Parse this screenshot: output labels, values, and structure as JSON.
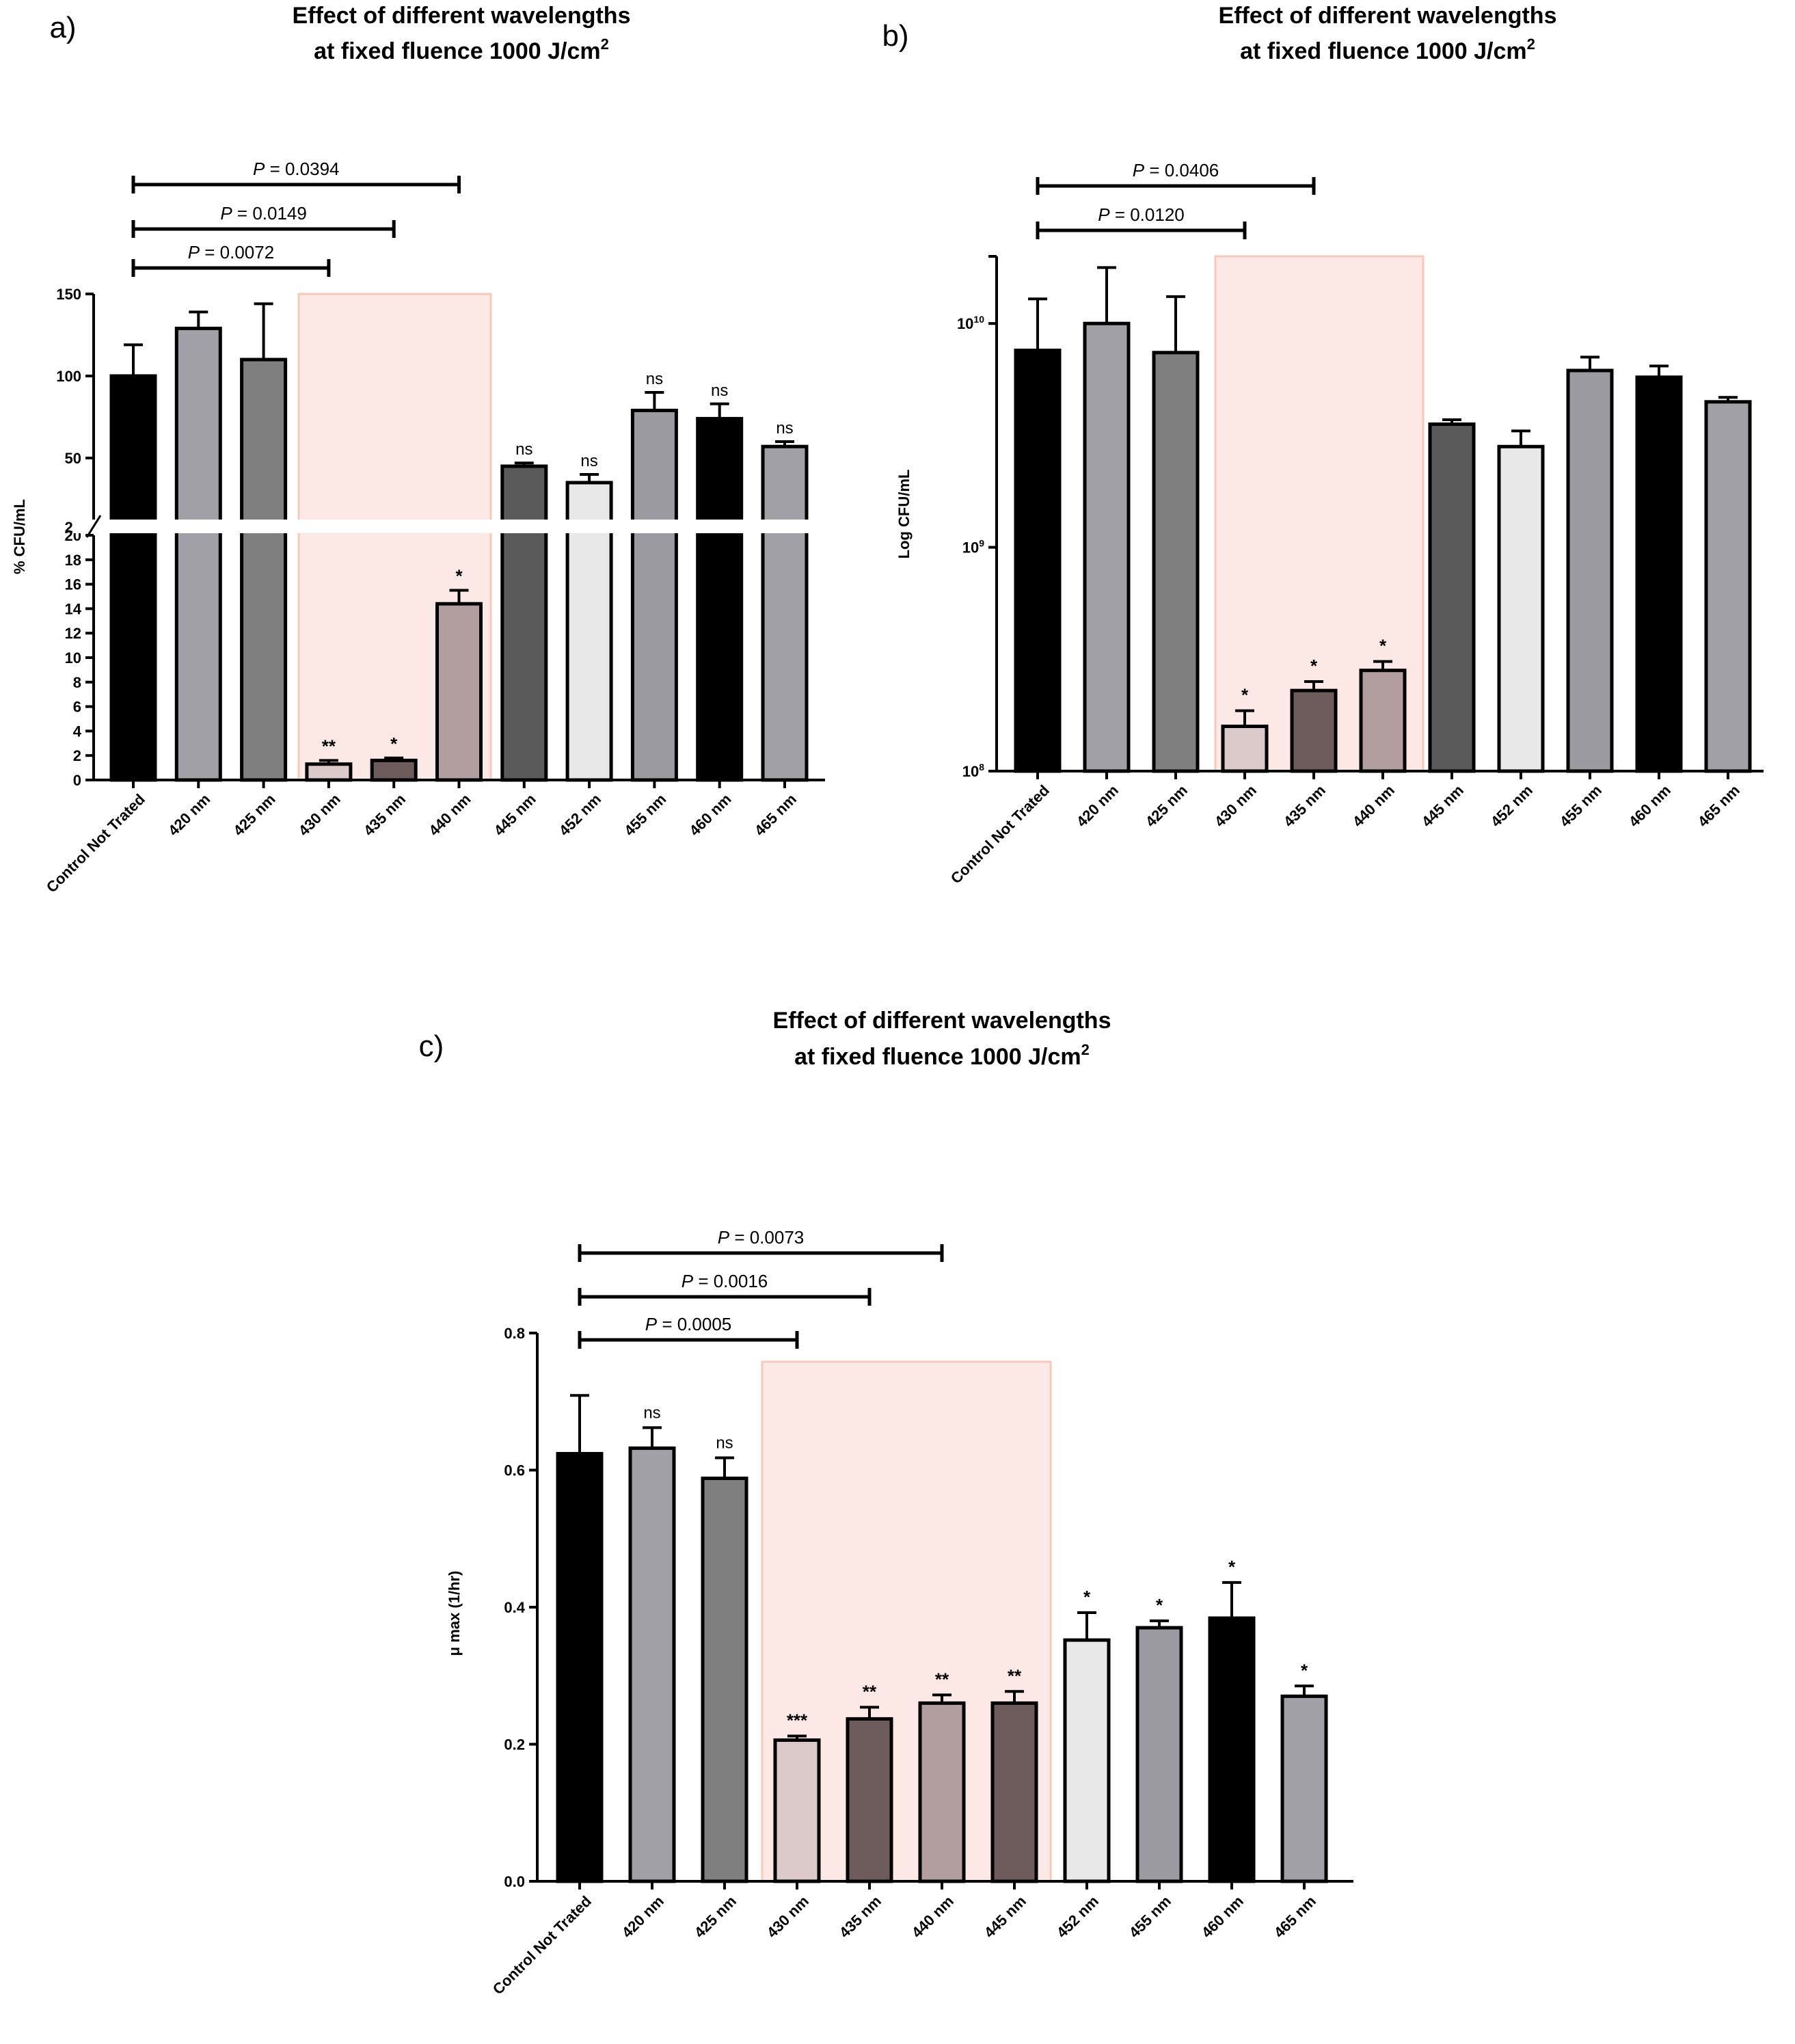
{
  "chart_data": [
    {
      "id": "a",
      "type": "bar",
      "panel_label": "a)",
      "title_line1": "Effect of different wavelengths",
      "title_line2": "at fixed fluence 1000 J/cm",
      "title_sup": "2",
      "ylabel": "% CFU/mL",
      "xlabel": "",
      "axis_break": {
        "lower": [
          0,
          20
        ],
        "upper": [
          20,
          150
        ]
      },
      "y_ticks_lower": [
        "0",
        "2",
        "4",
        "6",
        "8",
        "10",
        "12",
        "14",
        "16",
        "18",
        "20"
      ],
      "y_ticks_upper": [
        "50",
        "100",
        "150"
      ],
      "categories": [
        "Control Not Trated",
        "420 nm",
        "425 nm",
        "430 nm",
        "435 nm",
        "440 nm",
        "445 nm",
        "452 nm",
        "455 nm",
        "460 nm",
        "465 nm"
      ],
      "values": [
        100,
        129,
        110,
        1.3,
        1.6,
        14.4,
        45,
        35,
        79,
        74,
        57
      ],
      "errors": [
        19,
        10,
        34,
        0.3,
        0.2,
        1.1,
        2,
        5,
        11,
        9,
        3
      ],
      "colors": [
        "#000000",
        "#a0a0a6",
        "#7f7f7f",
        "#dccaca",
        "#6e5c5c",
        "#b29e9e",
        "#5a5a5a",
        "#e8e8e8",
        "#9a9aa0",
        "#000000",
        "#a0a0a6"
      ],
      "annotations": [
        "",
        "",
        "",
        "**",
        "*",
        "*",
        "ns",
        "ns",
        "ns",
        "ns",
        "ns"
      ],
      "highlight": {
        "from": 3,
        "to": 5
      },
      "brackets": [
        {
          "from": 0,
          "to": 5,
          "label_p": "P",
          "label": " = 0.0394"
        },
        {
          "from": 0,
          "to": 4,
          "label_p": "P",
          "label": " = 0.0149"
        },
        {
          "from": 0,
          "to": 3,
          "label_p": "P",
          "label": " = 0.0072"
        }
      ]
    },
    {
      "id": "b",
      "type": "bar",
      "panel_label": "b)",
      "title_line1": "Effect of different wavelengths",
      "title_line2": "at fixed fluence 1000 J/cm",
      "title_sup": "2",
      "ylabel": "Log CFU/mL",
      "xlabel": "",
      "yscale": "log",
      "ylim_exp": [
        8,
        10.3
      ],
      "y_ticks": [
        {
          "base": "10",
          "exp": "8"
        },
        {
          "base": "10",
          "exp": "9"
        },
        {
          "base": "10",
          "exp": "10"
        }
      ],
      "categories": [
        "Control Not Trated",
        "420 nm",
        "425 nm",
        "430 nm",
        "435 nm",
        "440 nm",
        "445 nm",
        "452 nm",
        "455 nm",
        "460 nm",
        "465 nm"
      ],
      "values_log10": [
        9.88,
        10.0,
        9.87,
        8.2,
        8.36,
        8.45,
        9.55,
        9.45,
        9.79,
        9.76,
        9.65
      ],
      "errors_log10": [
        0.23,
        0.25,
        0.25,
        0.07,
        0.04,
        0.04,
        0.02,
        0.07,
        0.06,
        0.05,
        0.02
      ],
      "colors": [
        "#000000",
        "#a0a0a6",
        "#7f7f7f",
        "#dccaca",
        "#6e5c5c",
        "#b29e9e",
        "#5a5a5a",
        "#e8e8e8",
        "#9a9aa0",
        "#000000",
        "#a0a0a6"
      ],
      "annotations": [
        "",
        "",
        "",
        "*",
        "*",
        "*",
        "",
        "",
        "",
        "",
        ""
      ],
      "highlight": {
        "from": 3,
        "to": 5
      },
      "brackets": [
        {
          "from": 0,
          "to": 4,
          "label_p": "P",
          "label": " = 0.0406"
        },
        {
          "from": 0,
          "to": 3,
          "label_p": "P",
          "label": " = 0.0120"
        }
      ]
    },
    {
      "id": "c",
      "type": "bar",
      "panel_label": "c)",
      "title_line1": "Effect of different wavelengths",
      "title_line2": "at fixed fluence 1000 J/cm",
      "title_sup": "2",
      "ylabel": "max (1/hr)",
      "xlabel": "",
      "ylim": [
        0,
        0.8
      ],
      "y_ticks": [
        "0.0",
        "0.2",
        "0.4",
        "0.6",
        "0.8"
      ],
      "categories": [
        "Control Not Trated",
        "420 nm",
        "425 nm",
        "430 nm",
        "435 nm",
        "440 nm",
        "445 nm",
        "452 nm",
        "455 nm",
        "460 nm",
        "465 nm"
      ],
      "values": [
        0.624,
        0.632,
        0.588,
        0.206,
        0.237,
        0.26,
        0.26,
        0.352,
        0.37,
        0.384,
        0.27
      ],
      "errors": [
        0.085,
        0.03,
        0.03,
        0.006,
        0.017,
        0.012,
        0.017,
        0.04,
        0.01,
        0.052,
        0.015
      ],
      "colors": [
        "#000000",
        "#a0a0a6",
        "#7f7f7f",
        "#dccaca",
        "#6e5c5c",
        "#b29e9e",
        "#6e5c5c",
        "#e8e8e8",
        "#9a9aa0",
        "#000000",
        "#a0a0a6"
      ],
      "annotations": [
        "",
        "ns",
        "ns",
        "***",
        "**",
        "**",
        "**",
        "*",
        "*",
        "*",
        "*"
      ],
      "highlight": {
        "from": 3,
        "to": 6
      },
      "brackets": [
        {
          "from": 0,
          "to": 5,
          "label_p": "P",
          "label": " = 0.0073"
        },
        {
          "from": 0,
          "to": 4,
          "label_p": "P",
          "label": " = 0.0016"
        },
        {
          "from": 0,
          "to": 3,
          "label_p": "P",
          "label": " = 0.0005"
        }
      ]
    }
  ]
}
